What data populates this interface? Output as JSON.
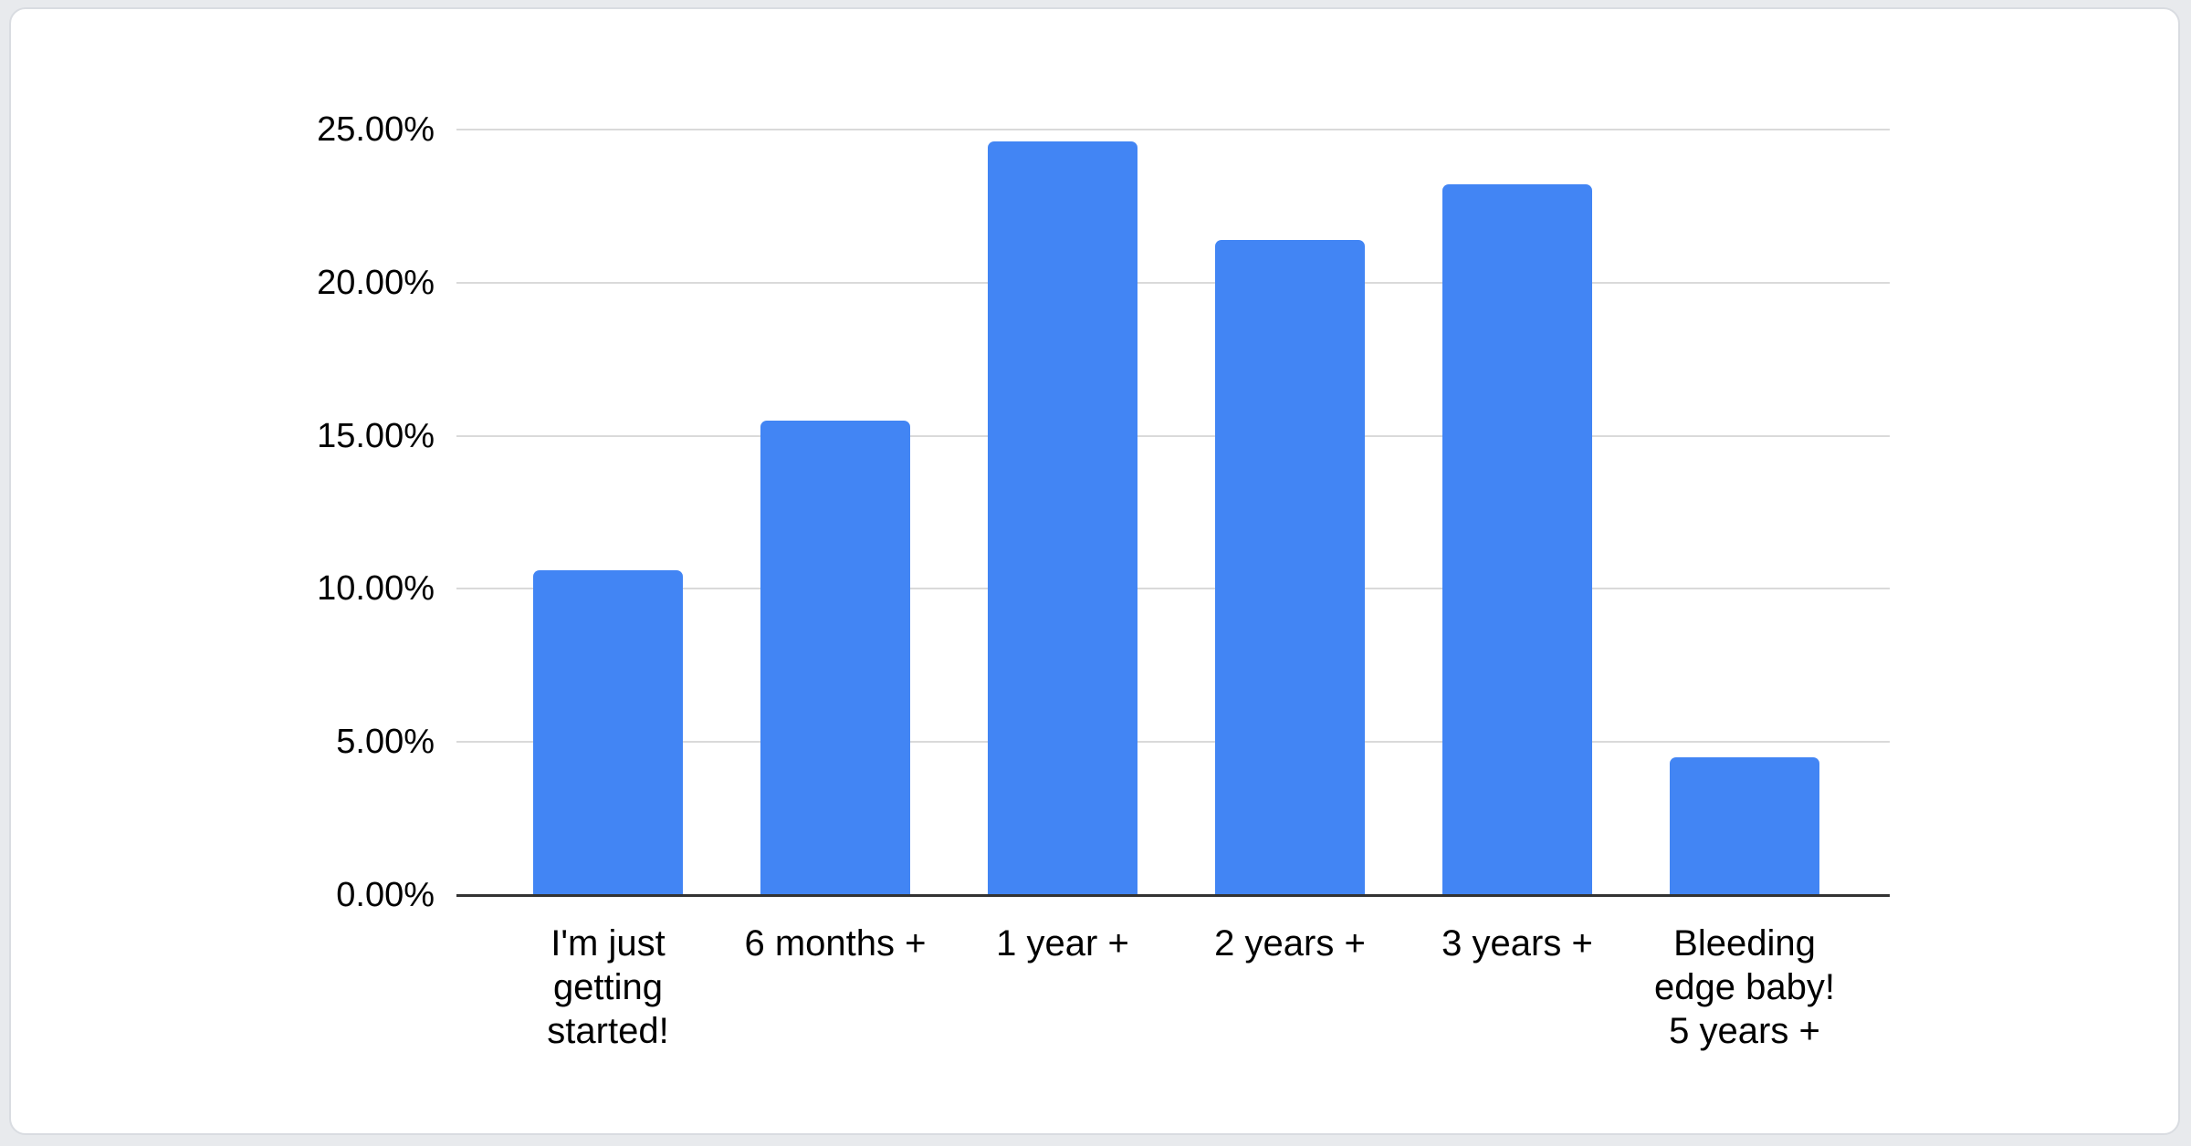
{
  "chart_data": {
    "type": "bar",
    "categories": [
      "I'm just getting started!",
      "6 months +",
      "1 year +",
      "2 years +",
      "3 years +",
      "Bleeding edge baby! 5 years +"
    ],
    "category_display_lines": [
      [
        "I'm just",
        "getting",
        "started!"
      ],
      [
        "6 months +"
      ],
      [
        "1 year +"
      ],
      [
        "2 years +"
      ],
      [
        "3 years +"
      ],
      [
        "Bleeding",
        "edge baby!",
        "5 years +"
      ]
    ],
    "values": [
      10.6,
      15.5,
      24.6,
      21.4,
      23.2,
      4.5
    ],
    "value_unit": "%",
    "ylim": [
      0,
      25
    ],
    "y_tick_step": 5,
    "y_tick_labels": [
      "0.00%",
      "5.00%",
      "10.00%",
      "15.00%",
      "20.00%",
      "25.00%"
    ],
    "grid": "horizontal",
    "legend": "none"
  },
  "colors": {
    "bar": "#4285f4",
    "gridline": "#dadada",
    "baseline": "#333333",
    "text": "#000000",
    "card_background": "#ffffff",
    "card_border": "#d9dce1",
    "page_background": "#e8eaed"
  }
}
